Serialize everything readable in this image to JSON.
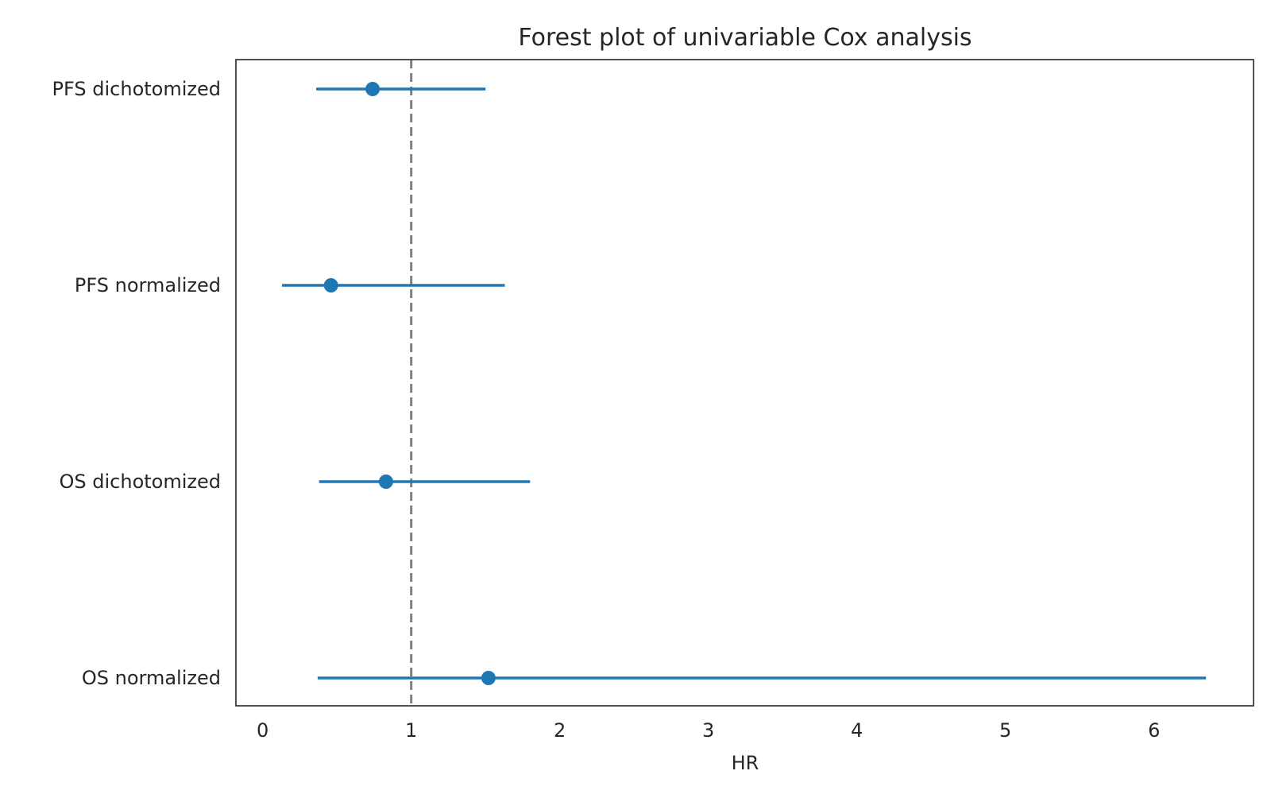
{
  "chart_data": {
    "type": "forest",
    "title": "Forest plot of univariable Cox analysis",
    "xlabel": "HR",
    "ylabel": "",
    "xlim": [
      -0.18,
      6.67
    ],
    "xticks": [
      0,
      1,
      2,
      3,
      4,
      5,
      6
    ],
    "reference_line": 1,
    "grid": false,
    "legend": false,
    "series": [
      {
        "label": "PFS dichotomized",
        "hr": 0.74,
        "ci_low": 0.36,
        "ci_high": 1.5
      },
      {
        "label": "PFS normalized",
        "hr": 0.46,
        "ci_low": 0.13,
        "ci_high": 1.63
      },
      {
        "label": "OS dichotomized",
        "hr": 0.83,
        "ci_low": 0.38,
        "ci_high": 1.8
      },
      {
        "label": "OS normalized",
        "hr": 1.52,
        "ci_low": 0.37,
        "ci_high": 6.35
      }
    ],
    "colors": {
      "point": "#1f77b4",
      "ci_line": "#1f77b4",
      "reference_line": "#808080",
      "frame": "#262626"
    }
  }
}
